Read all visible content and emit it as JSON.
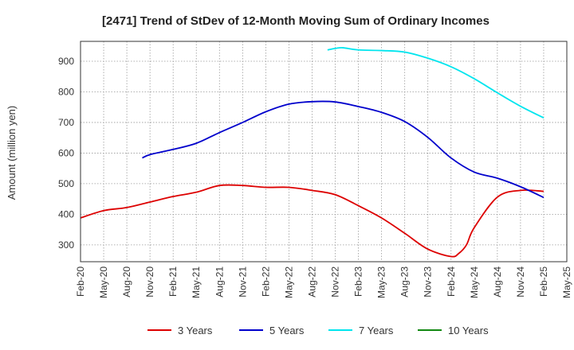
{
  "chart_data": {
    "type": "line",
    "title": "[2471]  Trend of StDev of 12-Month Moving Sum of Ordinary Incomes",
    "xlabel": "",
    "ylabel": "Amount (million yen)",
    "ylim": [
      245,
      965
    ],
    "yticks": [
      300,
      400,
      500,
      600,
      700,
      800,
      900
    ],
    "grid": true,
    "legend_position": "bottom",
    "x_ticks": [
      "Feb-20",
      "May-20",
      "Aug-20",
      "Nov-20",
      "Feb-21",
      "May-21",
      "Aug-21",
      "Nov-21",
      "Feb-22",
      "May-22",
      "Aug-22",
      "Nov-22",
      "Feb-23",
      "May-23",
      "Aug-23",
      "Nov-23",
      "Feb-24",
      "May-24",
      "Aug-24",
      "Nov-24",
      "Feb-25",
      "May-25"
    ],
    "series": [
      {
        "name": "3 Years",
        "color": "#dd0000",
        "values": [
          {
            "x": "Feb-20",
            "y": 388
          },
          {
            "x": "May-20",
            "y": 412
          },
          {
            "x": "Aug-20",
            "y": 422
          },
          {
            "x": "Nov-20",
            "y": 440
          },
          {
            "x": "Feb-21",
            "y": 458
          },
          {
            "x": "May-21",
            "y": 472
          },
          {
            "x": "Aug-21",
            "y": 494
          },
          {
            "x": "Nov-21",
            "y": 494
          },
          {
            "x": "Feb-22",
            "y": 488
          },
          {
            "x": "May-22",
            "y": 488
          },
          {
            "x": "Aug-22",
            "y": 478
          },
          {
            "x": "Nov-22",
            "y": 464
          },
          {
            "x": "Feb-23",
            "y": 428
          },
          {
            "x": "May-23",
            "y": 388
          },
          {
            "x": "Aug-23",
            "y": 338
          },
          {
            "x": "Nov-23",
            "y": 286
          },
          {
            "x": "Feb-24",
            "y": 262
          },
          {
            "x": "Mar-24",
            "y": 272
          },
          {
            "x": "Apr-24",
            "y": 300
          },
          {
            "x": "May-24",
            "y": 356
          },
          {
            "x": "Aug-24",
            "y": 456
          },
          {
            "x": "Nov-24",
            "y": 478
          },
          {
            "x": "Feb-25",
            "y": 475
          }
        ]
      },
      {
        "name": "5 Years",
        "color": "#0000cc",
        "values": [
          {
            "x": "Oct-20",
            "y": 584
          },
          {
            "x": "Nov-20",
            "y": 595
          },
          {
            "x": "Feb-21",
            "y": 612
          },
          {
            "x": "May-21",
            "y": 632
          },
          {
            "x": "Aug-21",
            "y": 667
          },
          {
            "x": "Nov-21",
            "y": 700
          },
          {
            "x": "Feb-22",
            "y": 735
          },
          {
            "x": "May-22",
            "y": 760
          },
          {
            "x": "Aug-22",
            "y": 768
          },
          {
            "x": "Nov-22",
            "y": 767
          },
          {
            "x": "Feb-23",
            "y": 752
          },
          {
            "x": "May-23",
            "y": 733
          },
          {
            "x": "Aug-23",
            "y": 703
          },
          {
            "x": "Nov-23",
            "y": 651
          },
          {
            "x": "Feb-24",
            "y": 584
          },
          {
            "x": "May-24",
            "y": 538
          },
          {
            "x": "Aug-24",
            "y": 518
          },
          {
            "x": "Nov-24",
            "y": 490
          },
          {
            "x": "Feb-25",
            "y": 455
          }
        ]
      },
      {
        "name": "7 Years",
        "color": "#00e5ee",
        "values": [
          {
            "x": "Oct-22",
            "y": 937
          },
          {
            "x": "Nov-22",
            "y": 942
          },
          {
            "x": "Dec-22",
            "y": 944
          },
          {
            "x": "Feb-23",
            "y": 937
          },
          {
            "x": "May-23",
            "y": 935
          },
          {
            "x": "Aug-23",
            "y": 930
          },
          {
            "x": "Nov-23",
            "y": 910
          },
          {
            "x": "Feb-24",
            "y": 882
          },
          {
            "x": "May-24",
            "y": 843
          },
          {
            "x": "Aug-24",
            "y": 797
          },
          {
            "x": "Nov-24",
            "y": 753
          },
          {
            "x": "Feb-25",
            "y": 715
          }
        ]
      },
      {
        "name": "10 Years",
        "color": "#118811",
        "values": []
      }
    ]
  }
}
